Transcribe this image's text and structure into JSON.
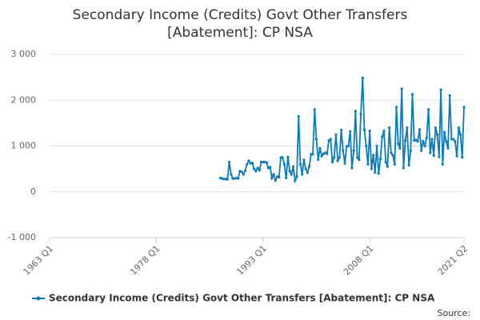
{
  "chart_data": {
    "type": "line",
    "title": "Secondary Income (Credits) Govt Other Transfers [Abatement]: CP NSA",
    "source": "Source:",
    "x": [
      1987,
      1987.25,
      1987.5,
      1987.75,
      1988,
      1988.25,
      1988.5,
      1988.75,
      1989,
      1989.25,
      1989.5,
      1989.75,
      1990,
      1990.25,
      1990.5,
      1990.75,
      1991,
      1991.25,
      1991.5,
      1991.75,
      1992,
      1992.25,
      1992.5,
      1992.75,
      1993,
      1993.25,
      1993.5,
      1993.75,
      1994,
      1994.25,
      1994.5,
      1994.75,
      1995,
      1995.25,
      1995.5,
      1995.75,
      1996,
      1996.25,
      1996.5,
      1996.75,
      1997,
      1997.25,
      1997.5,
      1997.75,
      1998,
      1998.25,
      1998.5,
      1998.75,
      1999,
      1999.25,
      1999.5,
      1999.75,
      2000,
      2000.25,
      2000.5,
      2000.75,
      2001,
      2001.25,
      2001.5,
      2001.75,
      2002,
      2002.25,
      2002.5,
      2002.75,
      2003,
      2003.25,
      2003.5,
      2003.75,
      2004,
      2004.25,
      2004.5,
      2004.75,
      2005,
      2005.25,
      2005.5,
      2005.75,
      2006,
      2006.25,
      2006.5,
      2006.75,
      2007,
      2007.25,
      2007.5,
      2007.75,
      2008,
      2008.25,
      2008.5,
      2008.75,
      2009,
      2009.25,
      2009.5,
      2009.75,
      2010,
      2010.25,
      2010.5,
      2010.75,
      2011,
      2011.25,
      2011.5,
      2011.75,
      2012,
      2012.25,
      2012.5,
      2012.75,
      2013,
      2013.25,
      2013.5,
      2013.75,
      2014,
      2014.25,
      2014.5,
      2014.75,
      2015,
      2015.25,
      2015.5,
      2015.75,
      2016,
      2016.25,
      2016.5,
      2016.75,
      2017,
      2017.25,
      2017.5,
      2017.75,
      2018,
      2018.25,
      2018.5,
      2018.75,
      2019,
      2019.25,
      2019.5,
      2019.75,
      2020,
      2020.25,
      2020.5,
      2020.75,
      2021,
      2021.25
    ],
    "series": [
      {
        "name": "Secondary Income (Credits) Govt Other Transfers [Abatement]: CP NSA",
        "color": "#0a7bb8",
        "values": [
          300,
          290,
          280,
          280,
          270,
          650,
          380,
          290,
          290,
          300,
          290,
          450,
          440,
          380,
          460,
          600,
          680,
          620,
          630,
          500,
          450,
          520,
          470,
          650,
          650,
          650,
          640,
          520,
          540,
          300,
          380,
          250,
          330,
          320,
          750,
          750,
          600,
          300,
          760,
          450,
          380,
          550,
          240,
          330,
          1650,
          600,
          380,
          700,
          500,
          420,
          550,
          820,
          820,
          1800,
          1150,
          700,
          950,
          780,
          830,
          850,
          830,
          1120,
          1150,
          650,
          750,
          1250,
          680,
          750,
          1350,
          900,
          620,
          990,
          1000,
          1320,
          520,
          900,
          1760,
          750,
          700,
          1700,
          2490,
          1350,
          1000,
          600,
          1330,
          500,
          800,
          420,
          1000,
          400,
          720,
          1200,
          1330,
          650,
          550,
          1400,
          850,
          800,
          600,
          1850,
          1050,
          950,
          2250,
          520,
          1120,
          1400,
          580,
          900,
          2130,
          1120,
          1130,
          1100,
          1360,
          900,
          1100,
          1000,
          1180,
          1800,
          850,
          1150,
          790,
          1400,
          1250,
          760,
          2230,
          600,
          1300,
          1100,
          950,
          2100,
          1150,
          1150,
          1100,
          780,
          1400,
          1250,
          750,
          1850
        ]
      }
    ],
    "xlim": [
      1963,
      2021.25
    ],
    "xticks": [
      {
        "value": 1963,
        "label": "1963 Q1"
      },
      {
        "value": 1978,
        "label": "1978 Q1"
      },
      {
        "value": 1993,
        "label": "1993 Q1"
      },
      {
        "value": 2008,
        "label": "2008 Q1"
      },
      {
        "value": 2021.25,
        "label": "2021 Q2"
      }
    ],
    "ylim": [
      -1000,
      3000
    ],
    "yticks": [
      {
        "value": -1000,
        "label": "-1 000"
      },
      0,
      {
        "value": 1000,
        "label": "1 000"
      },
      {
        "value": 2000,
        "label": "2 000"
      },
      {
        "value": 3000,
        "label": "3 000"
      }
    ],
    "grid": true
  }
}
